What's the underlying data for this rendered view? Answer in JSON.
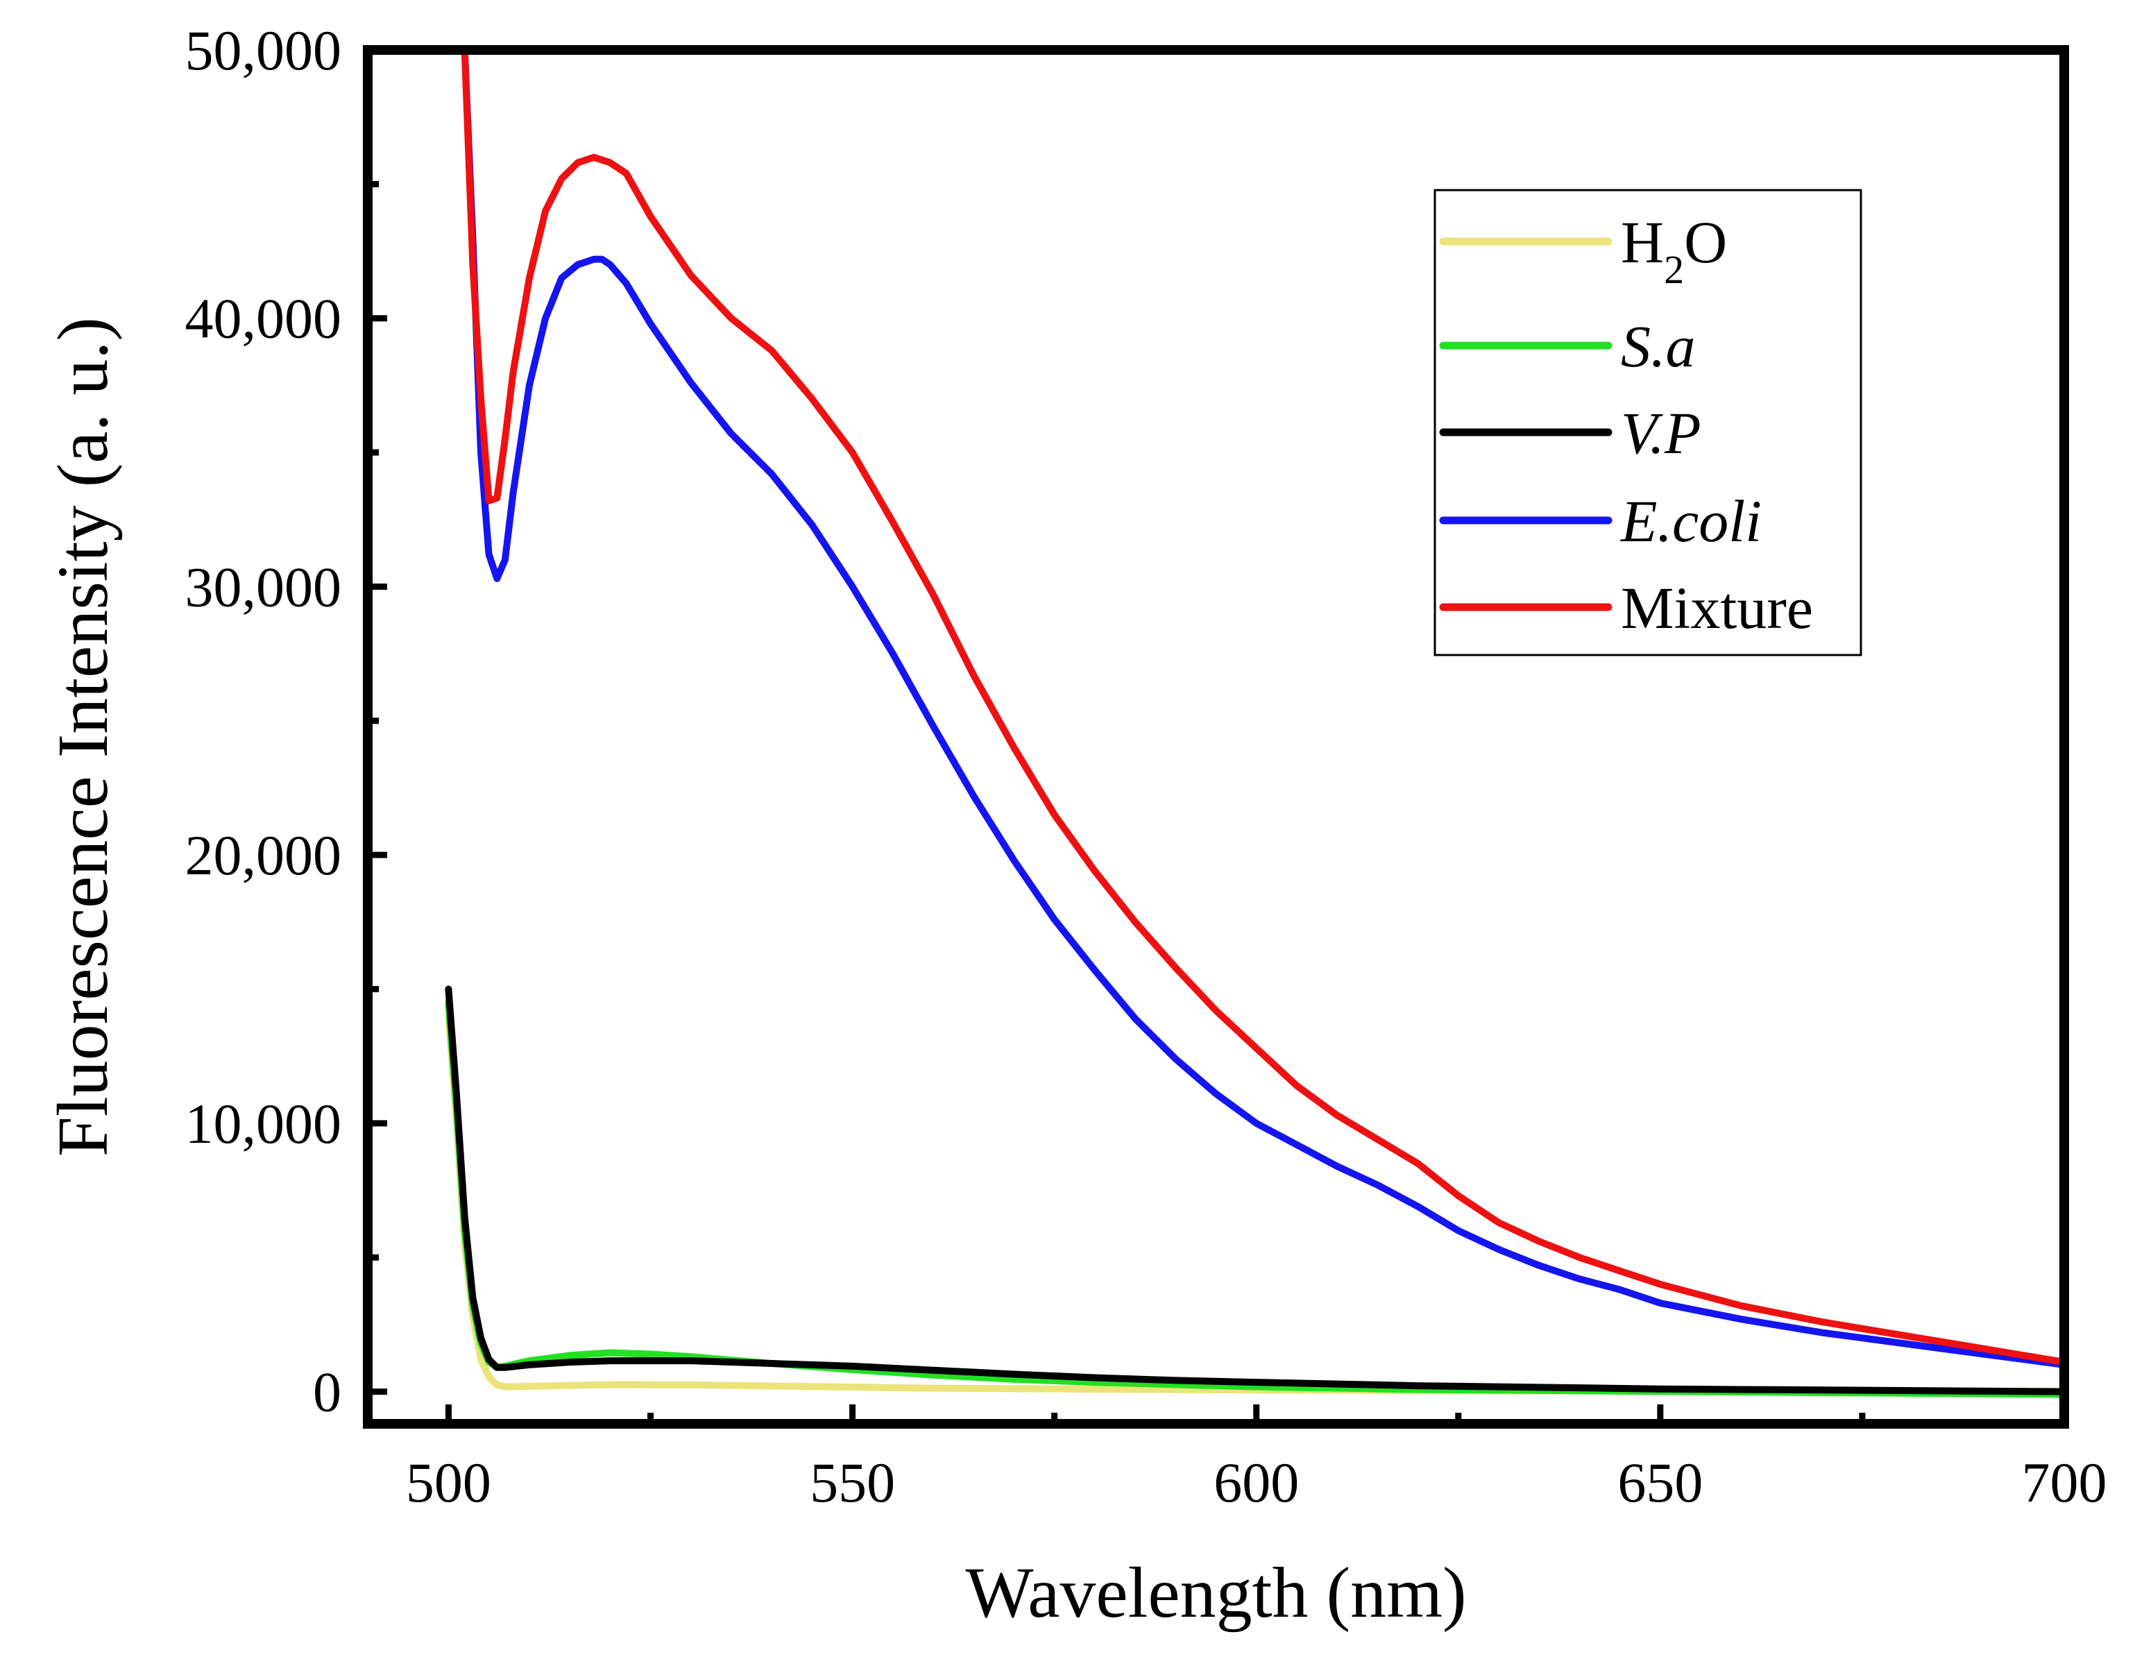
{
  "chart_data": {
    "type": "line",
    "title": "",
    "xlabel": "Wavelength (nm)",
    "ylabel": "Fluorescence Intensity (a. u.)",
    "xlim": [
      490,
      700
    ],
    "ylim": [
      -1200,
      50000
    ],
    "xticks": [
      500,
      550,
      600,
      650,
      700
    ],
    "xtick_labels": [
      "500",
      "550",
      "600",
      "650",
      "700"
    ],
    "yticks": [
      0,
      10000,
      20000,
      30000,
      40000,
      50000
    ],
    "ytick_labels": [
      "0",
      "10,000",
      "20,000",
      "30,000",
      "40,000",
      "50,000"
    ],
    "grid": false,
    "legend_position": "top-right",
    "legend": [
      {
        "text": "H",
        "sub": "2",
        "text2": "O",
        "italic": false,
        "color": "#ece37a"
      },
      {
        "text": "S.a",
        "italic": true,
        "color": "#22e022"
      },
      {
        "text": "V.P",
        "italic": true,
        "color": "#000000"
      },
      {
        "text": "E.coli",
        "italic": true,
        "color": "#1515f0"
      },
      {
        "text": "Mixture",
        "italic": false,
        "color": "#ee1111"
      }
    ],
    "series": [
      {
        "name": "H2O",
        "color": "#ece37a",
        "x": [
          500,
          501,
          502,
          503,
          504,
          505,
          506,
          507,
          510,
          520,
          530,
          540,
          550,
          560,
          580,
          600,
          620,
          650,
          700
        ],
        "y": [
          14000,
          10000,
          5500,
          2800,
          1200,
          550,
          250,
          180,
          200,
          260,
          250,
          210,
          170,
          130,
          90,
          60,
          40,
          20,
          10
        ]
      },
      {
        "name": "S.a",
        "color": "#22e022",
        "x": [
          500,
          501,
          502,
          503,
          504,
          505,
          506,
          507,
          510,
          515,
          520,
          525,
          530,
          540,
          550,
          560,
          570,
          580,
          600,
          620,
          650,
          700
        ],
        "y": [
          14500,
          10500,
          6000,
          3200,
          1800,
          1100,
          900,
          950,
          1150,
          1350,
          1450,
          1400,
          1300,
          1050,
          820,
          620,
          460,
          350,
          180,
          80,
          10,
          -100
        ]
      },
      {
        "name": "V.P",
        "color": "#000000",
        "x": [
          500,
          501,
          502,
          503,
          504,
          505,
          506,
          507,
          510,
          515,
          520,
          530,
          540,
          550,
          560,
          570,
          580,
          590,
          600,
          620,
          650,
          700
        ],
        "y": [
          15000,
          11000,
          6500,
          3500,
          2000,
          1200,
          900,
          900,
          1000,
          1100,
          1150,
          1150,
          1050,
          950,
          800,
          650,
          520,
          420,
          350,
          220,
          100,
          0
        ]
      },
      {
        "name": "E.coli",
        "color": "#1515f0",
        "x": [
          502,
          503,
          504,
          505,
          506,
          507,
          508,
          510,
          512,
          514,
          516,
          518,
          519,
          520,
          522,
          525,
          530,
          535,
          540,
          545,
          550,
          555,
          560,
          565,
          570,
          575,
          580,
          585,
          590,
          595,
          600,
          605,
          610,
          615,
          620,
          625,
          630,
          635,
          640,
          645,
          650,
          660,
          670,
          680,
          690,
          700
        ],
        "y": [
          50000,
          43000,
          35000,
          31200,
          30300,
          31000,
          33500,
          37500,
          40000,
          41500,
          42000,
          42200,
          42200,
          42000,
          41300,
          39800,
          37600,
          35700,
          34200,
          32300,
          30000,
          27500,
          24800,
          22200,
          19800,
          17600,
          15700,
          13900,
          12400,
          11100,
          10000,
          9200,
          8400,
          7700,
          6900,
          6000,
          5300,
          4700,
          4200,
          3800,
          3300,
          2700,
          2200,
          1800,
          1400,
          1000
        ]
      },
      {
        "name": "Mixture",
        "color": "#ee1111",
        "x": [
          502,
          503,
          504,
          505,
          506,
          507,
          508,
          510,
          512,
          514,
          516,
          518,
          520,
          522,
          525,
          530,
          535,
          540,
          545,
          550,
          555,
          560,
          565,
          570,
          575,
          580,
          585,
          590,
          595,
          600,
          605,
          610,
          615,
          620,
          625,
          630,
          635,
          640,
          645,
          650,
          660,
          670,
          680,
          690,
          700
        ],
        "y": [
          50000,
          42000,
          37000,
          33200,
          33300,
          35500,
          38000,
          41500,
          44000,
          45200,
          45800,
          46000,
          45800,
          45400,
          43800,
          41600,
          40000,
          38800,
          37000,
          35000,
          32400,
          29700,
          26700,
          24000,
          21500,
          19400,
          17500,
          15800,
          14200,
          12800,
          11400,
          10300,
          9400,
          8500,
          7300,
          6300,
          5600,
          5000,
          4500,
          4000,
          3200,
          2600,
          2100,
          1600,
          1100
        ]
      }
    ]
  }
}
